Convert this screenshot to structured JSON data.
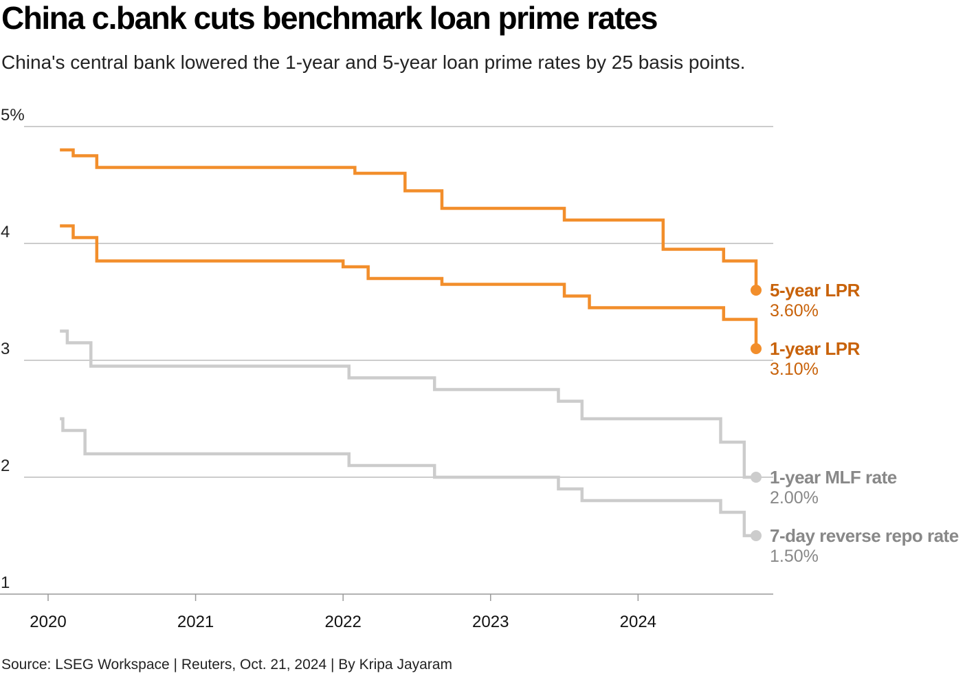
{
  "title": "China c.bank cuts benchmark loan prime rates",
  "subtitle": "China's central bank lowered the 1-year and 5-year loan prime rates by 25 basis points.",
  "source": "Source: LSEG Workspace | Reuters, Oct. 21, 2024 | By Kripa Jayaram",
  "colors": {
    "accent": "#f28e2b",
    "accent_text": "#c8620a",
    "muted": "#cccccc",
    "muted_text": "#888888",
    "grid": "#bbbbbb"
  },
  "chart_data": {
    "type": "line",
    "step": true,
    "y_ticks": [
      {
        "value": 5,
        "label": "5%"
      },
      {
        "value": 4,
        "label": "4"
      },
      {
        "value": 3,
        "label": "3"
      },
      {
        "value": 2,
        "label": "2"
      },
      {
        "value": 1,
        "label": "1"
      }
    ],
    "x_ticks": [
      {
        "value": 2020,
        "label": "2020"
      },
      {
        "value": 2021,
        "label": "2021"
      },
      {
        "value": 2022,
        "label": "2022"
      },
      {
        "value": 2023,
        "label": "2023"
      },
      {
        "value": 2024,
        "label": "2024"
      }
    ],
    "xlim": [
      2019.92,
      2024.9
    ],
    "ylim": [
      1,
      5
    ],
    "series": [
      {
        "name": "5-year LPR",
        "value_label": "3.60%",
        "highlight": true,
        "points": [
          [
            2020.08,
            4.8
          ],
          [
            2020.17,
            4.75
          ],
          [
            2020.33,
            4.65
          ],
          [
            2022.08,
            4.6
          ],
          [
            2022.42,
            4.45
          ],
          [
            2022.67,
            4.3
          ],
          [
            2023.5,
            4.2
          ],
          [
            2024.17,
            3.95
          ],
          [
            2024.58,
            3.85
          ],
          [
            2024.8,
            3.6
          ]
        ]
      },
      {
        "name": "1-year LPR",
        "value_label": "3.10%",
        "highlight": true,
        "points": [
          [
            2020.08,
            4.15
          ],
          [
            2020.17,
            4.05
          ],
          [
            2020.33,
            3.85
          ],
          [
            2022.0,
            3.8
          ],
          [
            2022.17,
            3.7
          ],
          [
            2022.67,
            3.65
          ],
          [
            2023.5,
            3.55
          ],
          [
            2023.67,
            3.45
          ],
          [
            2024.58,
            3.35
          ],
          [
            2024.8,
            3.1
          ]
        ]
      },
      {
        "name": "1-year MLF rate",
        "value_label": "2.00%",
        "highlight": false,
        "points": [
          [
            2020.08,
            3.25
          ],
          [
            2020.13,
            3.15
          ],
          [
            2020.29,
            2.95
          ],
          [
            2022.04,
            2.85
          ],
          [
            2022.62,
            2.75
          ],
          [
            2023.46,
            2.65
          ],
          [
            2023.62,
            2.5
          ],
          [
            2024.56,
            2.3
          ],
          [
            2024.72,
            2.0
          ],
          [
            2024.8,
            2.0
          ]
        ]
      },
      {
        "name": "7-day reverse repo rate",
        "value_label": "1.50%",
        "highlight": false,
        "points": [
          [
            2020.08,
            2.5
          ],
          [
            2020.1,
            2.4
          ],
          [
            2020.25,
            2.2
          ],
          [
            2022.04,
            2.1
          ],
          [
            2022.62,
            2.0
          ],
          [
            2023.46,
            1.9
          ],
          [
            2023.62,
            1.8
          ],
          [
            2024.56,
            1.7
          ],
          [
            2024.72,
            1.5
          ],
          [
            2024.8,
            1.5
          ]
        ]
      }
    ]
  }
}
